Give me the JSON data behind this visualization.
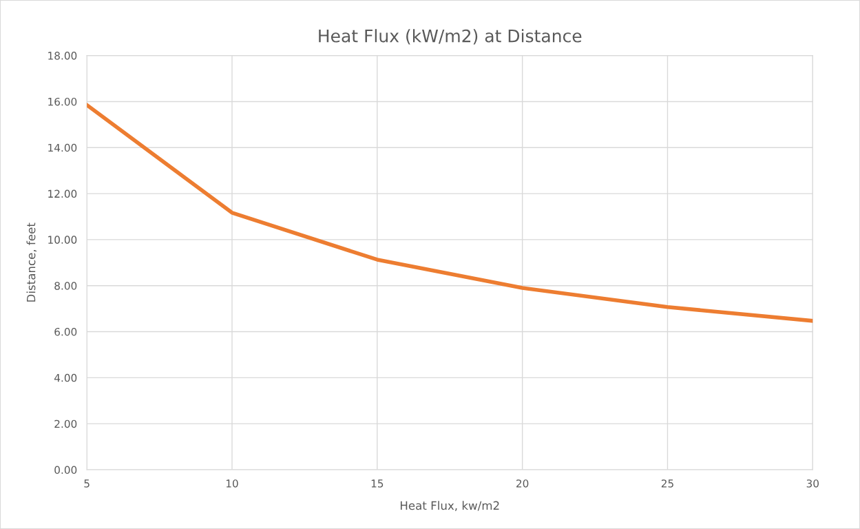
{
  "chart_data": {
    "type": "line",
    "title": "Heat Flux (kW/m2) at Distance",
    "xlabel": "Heat Flux, kw/m2",
    "ylabel": "Distance, feet",
    "x": [
      5,
      10,
      15,
      20,
      25,
      30
    ],
    "series": [
      {
        "color": "#ed7d31",
        "values": [
          15.85,
          11.17,
          9.13,
          7.9,
          7.07,
          6.47
        ]
      }
    ],
    "xlim": [
      5,
      30
    ],
    "xticks": [
      5,
      10,
      15,
      20,
      25,
      30
    ],
    "ylim": [
      0,
      18
    ],
    "yticks": [
      {
        "value": 0,
        "label": "0.00"
      },
      {
        "value": 2,
        "label": "2.00"
      },
      {
        "value": 4,
        "label": "4.00"
      },
      {
        "value": 6,
        "label": "6.00"
      },
      {
        "value": 8,
        "label": "8.00"
      },
      {
        "value": 10,
        "label": "10.00"
      },
      {
        "value": 12,
        "label": "12.00"
      },
      {
        "value": 14,
        "label": "14.00"
      },
      {
        "value": 16,
        "label": "16.00"
      },
      {
        "value": 18,
        "label": "18.00"
      }
    ],
    "grid": true,
    "marker": "none",
    "line_style": "solid",
    "legend": false
  }
}
